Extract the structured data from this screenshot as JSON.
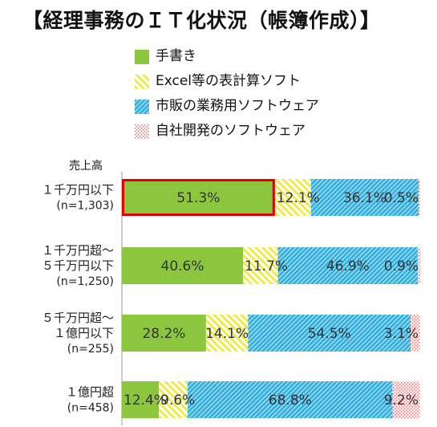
{
  "title": "【経理事務のＩＴ化状況（帳簿作成）】",
  "axis_header": "売上高",
  "colors": {
    "handwritten": "#8cc63f",
    "excel": "#f7f279",
    "commercial": "#3ab4dc",
    "inhouse": "#e8a0a0",
    "highlight": "#e00000"
  },
  "chart_data": {
    "type": "bar",
    "orientation": "horizontal",
    "stacked": true,
    "normalized": true,
    "title": "【経理事務のＩＴ化状況（帳簿作成）】",
    "ylabel": "売上高",
    "legend_position": "top",
    "categories": [
      {
        "lines": [
          "１千万円以下"
        ],
        "n": "(n=1,303)"
      },
      {
        "lines": [
          "１千万円超～",
          "５千万円以下"
        ],
        "n": "(n=1,250)"
      },
      {
        "lines": [
          "５千万円超～",
          "１億円以下"
        ],
        "n": "(n=255)"
      },
      {
        "lines": [
          "１億円超"
        ],
        "n": "(n=458)"
      }
    ],
    "series": [
      {
        "name": "手書き",
        "key": "handwritten",
        "values": [
          51.3,
          40.6,
          28.2,
          12.4
        ],
        "labels": [
          "51.3%",
          "40.6%",
          "28.2%",
          "12.4%"
        ]
      },
      {
        "name": "Excel等の表計算ソフト",
        "key": "excel",
        "values": [
          12.1,
          11.7,
          14.1,
          9.6
        ],
        "labels": [
          "12.1%",
          "11.7%",
          "14.1%",
          "9.6%"
        ]
      },
      {
        "name": "市販の業務用ソフトウェア",
        "key": "commercial",
        "values": [
          36.1,
          46.9,
          54.5,
          68.8
        ],
        "labels": [
          "36.1%",
          "46.9%",
          "54.5%",
          "68.8%"
        ]
      },
      {
        "name": "自社開発のソフトウェア",
        "key": "inhouse",
        "values": [
          0.5,
          0.9,
          3.1,
          9.2
        ],
        "labels": [
          "0.5%",
          "0.9%",
          "3.1%",
          "9.2%"
        ]
      }
    ],
    "highlight": {
      "category_index": 0,
      "series_index": 0
    }
  }
}
